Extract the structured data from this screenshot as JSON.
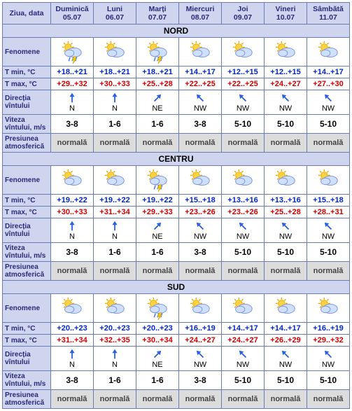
{
  "header": {
    "label": "Ziua, data"
  },
  "days": [
    {
      "name": "Duminică",
      "date": "05.07"
    },
    {
      "name": "Luni",
      "date": "06.07"
    },
    {
      "name": "Marți",
      "date": "07.07"
    },
    {
      "name": "Miercuri",
      "date": "08.07"
    },
    {
      "name": "Joi",
      "date": "09.07"
    },
    {
      "name": "Vineri",
      "date": "10.07"
    },
    {
      "name": "Sâmbătă",
      "date": "11.07"
    }
  ],
  "rowlabels": {
    "fenomene": "Fenomene",
    "tmin": "T min, °C",
    "tmax": "T max, °C",
    "winddir": "Direcția vîntului",
    "windspd": "Viteza vîntului, m/s",
    "pres": "Presiunea atmosferică"
  },
  "regions": [
    {
      "name": "NORD",
      "phen": [
        "storm",
        "cloudy-sun",
        "storm",
        "cloudy-sun",
        "sun-cloud",
        "sun-cloud",
        "sun-cloud"
      ],
      "tmin": [
        "+18..+21",
        "+18..+21",
        "+18..+21",
        "+14..+17",
        "+12..+15",
        "+12..+15",
        "+14..+17"
      ],
      "tmax": [
        "+29..+32",
        "+30..+33",
        "+25..+28",
        "+22..+25",
        "+22..+25",
        "+24..+27",
        "+27..+30"
      ],
      "wdir": [
        "N",
        "N",
        "NE",
        "NW",
        "NW",
        "NW",
        "NW"
      ],
      "wspd": [
        "3-8",
        "1-6",
        "1-6",
        "3-8",
        "5-10",
        "5-10",
        "5-10"
      ],
      "pres": [
        "normală",
        "normală",
        "normală",
        "normală",
        "normală",
        "normală",
        "normală"
      ]
    },
    {
      "name": "CENTRU",
      "phen": [
        "cloudy-sun",
        "cloudy-sun",
        "storm",
        "cloudy-sun",
        "sun-cloud",
        "sun-cloud",
        "sun-cloud"
      ],
      "tmin": [
        "+19..+22",
        "+19..+22",
        "+19..+22",
        "+15..+18",
        "+13..+16",
        "+13..+16",
        "+15..+18"
      ],
      "tmax": [
        "+30..+33",
        "+31..+34",
        "+29..+33",
        "+23..+26",
        "+23..+26",
        "+25..+28",
        "+28..+31"
      ],
      "wdir": [
        "N",
        "N",
        "NE",
        "NW",
        "NW",
        "NW",
        "NW"
      ],
      "wspd": [
        "3-8",
        "1-6",
        "1-6",
        "3-8",
        "5-10",
        "5-10",
        "5-10"
      ],
      "pres": [
        "normală",
        "normală",
        "normală",
        "normală",
        "normală",
        "normală",
        "normală"
      ]
    },
    {
      "name": "SUD",
      "phen": [
        "cloudy-sun",
        "cloudy-sun",
        "storm",
        "cloudy-sun",
        "sun-cloud",
        "sun-cloud",
        "sun-cloud"
      ],
      "tmin": [
        "+20..+23",
        "+20..+23",
        "+20..+23",
        "+16..+19",
        "+14..+17",
        "+14..+17",
        "+16..+19"
      ],
      "tmax": [
        "+31..+34",
        "+32..+35",
        "+30..+34",
        "+24..+27",
        "+24..+27",
        "+26..+29",
        "+29..+32"
      ],
      "wdir": [
        "N",
        "N",
        "NE",
        "NW",
        "NW",
        "NW",
        "NW"
      ],
      "wspd": [
        "3-8",
        "1-6",
        "1-6",
        "3-8",
        "5-10",
        "5-10",
        "5-10"
      ],
      "pres": [
        "normală",
        "normală",
        "normală",
        "normală",
        "normală",
        "normală",
        "normală"
      ]
    }
  ],
  "colors": {
    "border": "#6a7db3",
    "headbg": "#cfd5ee",
    "headfg": "#2a2a7a",
    "tmin": "#0028c9",
    "tmax": "#d40000",
    "presbg": "#dcdcdc",
    "wlabel": "#4a5aa0"
  }
}
